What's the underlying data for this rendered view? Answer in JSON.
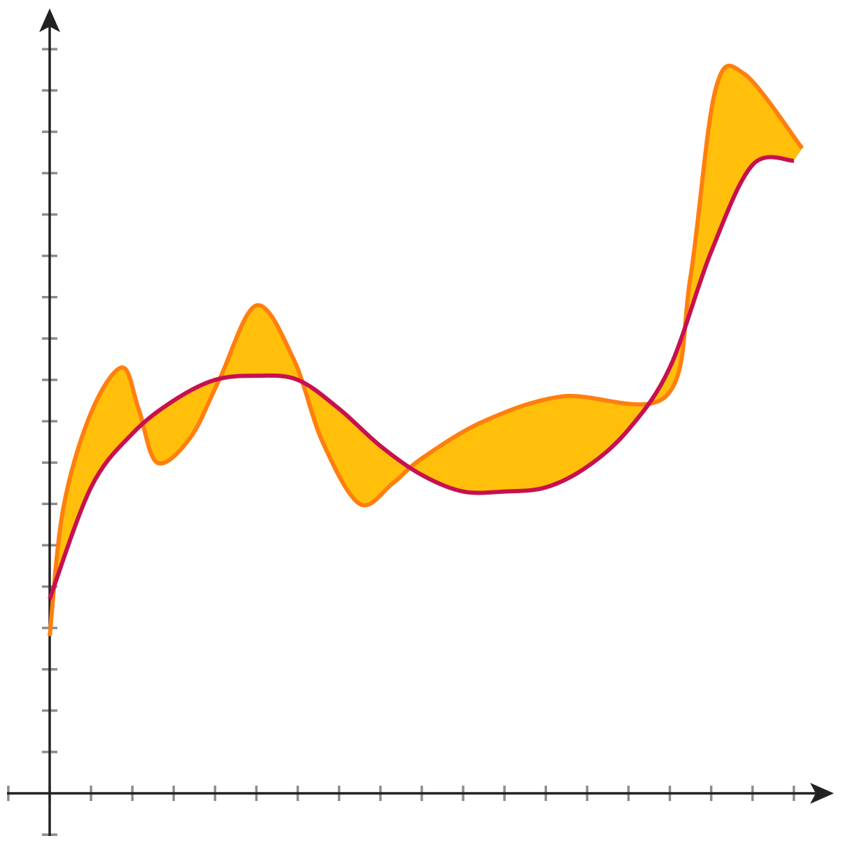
{
  "chart_data": {
    "type": "area",
    "title": "",
    "xlabel": "",
    "ylabel": "",
    "xlim": [
      -1,
      19
    ],
    "ylim": [
      -1,
      19
    ],
    "x_ticks": [
      -1,
      0,
      1,
      2,
      3,
      4,
      5,
      6,
      7,
      8,
      9,
      10,
      11,
      12,
      13,
      14,
      15,
      16,
      17,
      18
    ],
    "y_ticks": [
      -1,
      1,
      2,
      3,
      4,
      5,
      6,
      7,
      8,
      9,
      10,
      11,
      12,
      13,
      14,
      15,
      16,
      17,
      18
    ],
    "tick_labels_shown": false,
    "grid": false,
    "legend": "none",
    "series": [
      {
        "role": "wavy-curve",
        "color": "#FF7F0E",
        "points": [
          [
            0.0,
            3.8
          ],
          [
            0.33,
            6.9
          ],
          [
            1.0,
            9.2
          ],
          [
            1.75,
            10.3
          ],
          [
            2.15,
            9.3
          ],
          [
            2.6,
            8.0
          ],
          [
            3.4,
            8.6
          ],
          [
            4.1,
            10.0
          ],
          [
            5.0,
            11.8
          ],
          [
            5.9,
            10.5
          ],
          [
            6.6,
            8.5
          ],
          [
            7.5,
            7.0
          ],
          [
            8.3,
            7.5
          ],
          [
            9.0,
            8.1
          ],
          [
            10.5,
            9.0
          ],
          [
            12.4,
            9.6
          ],
          [
            14.9,
            9.6
          ],
          [
            15.5,
            12.5
          ],
          [
            16.1,
            17.0
          ],
          [
            16.8,
            17.4
          ],
          [
            18.2,
            15.6
          ]
        ]
      },
      {
        "role": "smooth-curve",
        "color": "#C8104E",
        "points": [
          [
            0.0,
            4.7
          ],
          [
            1.0,
            7.4
          ],
          [
            2.0,
            8.7
          ],
          [
            3.0,
            9.5
          ],
          [
            4.0,
            10.0
          ],
          [
            5.0,
            10.1
          ],
          [
            6.0,
            10.0
          ],
          [
            7.0,
            9.3
          ],
          [
            8.0,
            8.4
          ],
          [
            9.0,
            7.7
          ],
          [
            10.0,
            7.3
          ],
          [
            11.0,
            7.3
          ],
          [
            12.0,
            7.4
          ],
          [
            13.0,
            7.9
          ],
          [
            14.0,
            8.8
          ],
          [
            15.0,
            10.3
          ],
          [
            16.0,
            13.1
          ],
          [
            17.0,
            15.2
          ],
          [
            18.0,
            15.3
          ]
        ]
      }
    ],
    "fill_between": {
      "series": [
        "wavy-curve",
        "smooth-curve"
      ],
      "color": "#FFBF0A"
    },
    "axis_color": "#222222",
    "tick_color": "#8C8C8C"
  }
}
